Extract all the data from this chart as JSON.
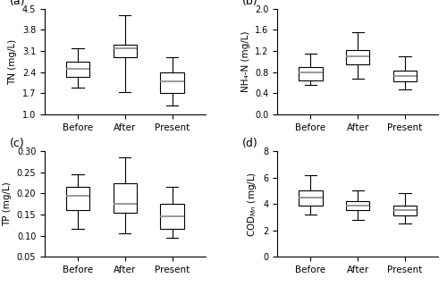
{
  "panels": [
    {
      "label": "(a)",
      "ylabel": "TN (mg/L)",
      "ylim": [
        1.0,
        4.5
      ],
      "yticks": [
        1.0,
        1.7,
        2.4,
        3.1,
        3.8,
        4.5
      ],
      "categories": [
        "Before",
        "After",
        "Present"
      ],
      "boxes": [
        {
          "whislo": 1.9,
          "q1": 2.25,
          "med": 2.5,
          "q3": 2.75,
          "whishi": 3.2
        },
        {
          "whislo": 1.75,
          "q1": 2.9,
          "med": 3.2,
          "q3": 3.3,
          "whishi": 4.3
        },
        {
          "whislo": 1.3,
          "q1": 1.7,
          "med": 2.1,
          "q3": 2.4,
          "whishi": 2.9
        }
      ]
    },
    {
      "label": "(b)",
      "ylabel": "NH₄-N (mg/L)",
      "ylim": [
        0.0,
        2.0
      ],
      "yticks": [
        0.0,
        0.4,
        0.8,
        1.2,
        1.6,
        2.0
      ],
      "categories": [
        "Before",
        "After",
        "Present"
      ],
      "boxes": [
        {
          "whislo": 0.55,
          "q1": 0.65,
          "med": 0.8,
          "q3": 0.9,
          "whishi": 1.15
        },
        {
          "whislo": 0.68,
          "q1": 0.95,
          "med": 1.1,
          "q3": 1.22,
          "whishi": 1.55
        },
        {
          "whislo": 0.48,
          "q1": 0.62,
          "med": 0.72,
          "q3": 0.83,
          "whishi": 1.1
        }
      ]
    },
    {
      "label": "(c)",
      "ylabel": "TP (mg/L)",
      "ylim": [
        0.05,
        0.3
      ],
      "yticks": [
        0.05,
        0.1,
        0.15,
        0.2,
        0.25,
        0.3
      ],
      "categories": [
        "Before",
        "After",
        "Present"
      ],
      "boxes": [
        {
          "whislo": 0.115,
          "q1": 0.16,
          "med": 0.195,
          "q3": 0.215,
          "whishi": 0.245
        },
        {
          "whislo": 0.105,
          "q1": 0.155,
          "med": 0.175,
          "q3": 0.225,
          "whishi": 0.285
        },
        {
          "whislo": 0.095,
          "q1": 0.115,
          "med": 0.145,
          "q3": 0.175,
          "whishi": 0.215
        }
      ]
    },
    {
      "label": "(d)",
      "ylabel": "COD$_{Mn}$ (mg/L)",
      "ylim": [
        0,
        8
      ],
      "yticks": [
        0,
        2,
        4,
        6,
        8
      ],
      "categories": [
        "Before",
        "After",
        "Present"
      ],
      "boxes": [
        {
          "whislo": 3.2,
          "q1": 3.9,
          "med": 4.5,
          "q3": 5.0,
          "whishi": 6.2
        },
        {
          "whislo": 2.8,
          "q1": 3.5,
          "med": 3.9,
          "q3": 4.2,
          "whishi": 5.0
        },
        {
          "whislo": 2.5,
          "q1": 3.1,
          "med": 3.5,
          "q3": 3.9,
          "whishi": 4.8
        }
      ]
    }
  ],
  "box_color": "#ffffff",
  "median_color": "#888888",
  "whisker_color": "#000000",
  "box_edge_color": "#000000",
  "figsize": [
    5.0,
    3.3
  ],
  "dpi": 100
}
